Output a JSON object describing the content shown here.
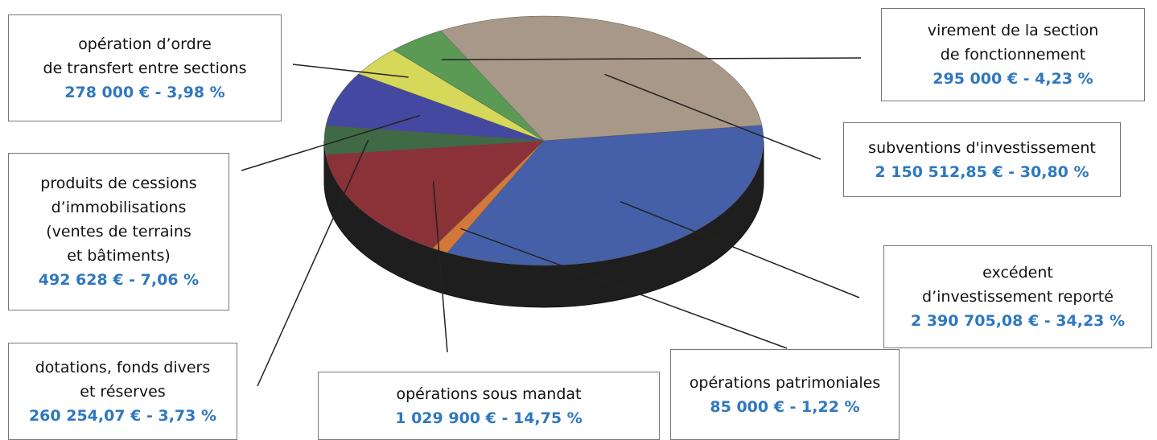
{
  "chart_data": {
    "type": "pie",
    "categories": [
      "subventions d'investissement",
      "excédent\nd’investissement reporté",
      "opérations patrimoniales",
      "opérations sous mandat",
      "dotations, fonds divers\net réserves",
      "produits de cessions\nd’immobilisations\n(ventes de terrains\net bâtiments)",
      "opération d’ordre\nde transfert entre sections",
      "virement de la section\nde fonctionnement"
    ],
    "values": [
      30.8,
      34.23,
      1.22,
      14.75,
      3.73,
      7.06,
      3.98,
      4.23
    ],
    "value_labels": [
      "2 150 512,85 € - 30,80 %",
      "2 390 705,08 € - 34,23 %",
      "85 000 € - 1,22 %",
      "1 029 900 € - 14,75 %",
      "260 254,07 € - 3,73 %",
      "492 628 € - 7,06 %",
      "278 000 € - 3,98 %",
      "295 000 € - 4,23 %"
    ],
    "colors": [
      "#a89888",
      "#4560a8",
      "#d2783a",
      "#8a3238",
      "#3f6a45",
      "#4548a0",
      "#d6d85a",
      "#5a9a55"
    ]
  }
}
